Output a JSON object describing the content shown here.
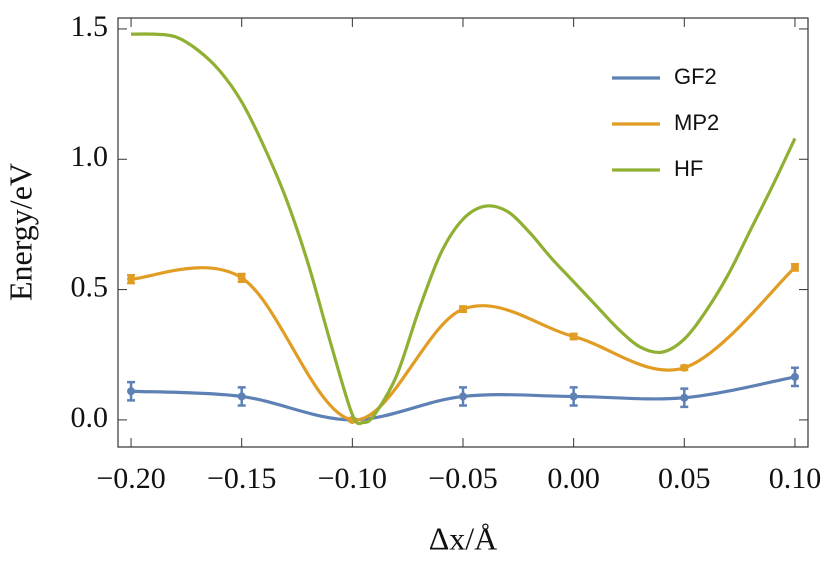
{
  "chart_data": {
    "type": "line",
    "xlabel": "Δx/Å",
    "ylabel": "Energy/eV",
    "xlim": [
      -0.2059,
      0.1059
    ],
    "ylim": [
      -0.104,
      1.542
    ],
    "xticks": [
      {
        "value": -0.2,
        "label": "−0.20"
      },
      {
        "value": -0.15,
        "label": "−0.15"
      },
      {
        "value": -0.1,
        "label": "−0.10"
      },
      {
        "value": -0.05,
        "label": "−0.05"
      },
      {
        "value": 0,
        "label": "0.00"
      },
      {
        "value": 0.05,
        "label": "0.05"
      },
      {
        "value": 0.1,
        "label": "0.10"
      }
    ],
    "yticks": [
      {
        "value": 0,
        "label": "0.0"
      },
      {
        "value": 0.5,
        "label": "0.5"
      },
      {
        "value": 1,
        "label": "1.0"
      },
      {
        "value": 1.5,
        "label": "1.5"
      }
    ],
    "legend": "top-right",
    "series": [
      {
        "name": "GF2",
        "color": "#5e81b5",
        "x": [
          -0.2,
          -0.15,
          -0.1,
          -0.05,
          0,
          0.05,
          0.1
        ],
        "values": [
          0.11,
          0.09,
          0.0,
          0.09,
          0.09,
          0.085,
          0.165
        ],
        "errors": [
          0.035,
          0.035,
          0.005,
          0.035,
          0.035,
          0.035,
          0.035
        ]
      },
      {
        "name": "MP2",
        "color": "#e19c24",
        "x": [
          -0.2,
          -0.15,
          -0.1,
          -0.05,
          0,
          0.05,
          0.1
        ],
        "values": [
          0.54,
          0.545,
          0.0,
          0.425,
          0.32,
          0.2,
          0.585
        ],
        "errors": [
          0.015,
          0.015,
          0.005,
          0.01,
          0.01,
          0.008,
          0.012
        ]
      },
      {
        "name": "HF",
        "color": "#8fb032",
        "x": [
          -0.2,
          -0.19,
          -0.18,
          -0.17,
          -0.16,
          -0.15,
          -0.14,
          -0.13,
          -0.12,
          -0.11,
          -0.1,
          -0.095,
          -0.09,
          -0.08,
          -0.07,
          -0.06,
          -0.05,
          -0.04,
          -0.03,
          -0.02,
          -0.01,
          0,
          0.01,
          0.02,
          0.03,
          0.04,
          0.05,
          0.06,
          0.07,
          0.08,
          0.09,
          0.1
        ],
        "values": [
          1.48,
          1.48,
          1.47,
          1.42,
          1.34,
          1.22,
          1.05,
          0.85,
          0.6,
          0.3,
          0.02,
          -0.01,
          0.02,
          0.17,
          0.42,
          0.64,
          0.77,
          0.82,
          0.8,
          0.72,
          0.62,
          0.53,
          0.44,
          0.35,
          0.28,
          0.26,
          0.31,
          0.42,
          0.56,
          0.73,
          0.9,
          1.08
        ]
      }
    ]
  }
}
